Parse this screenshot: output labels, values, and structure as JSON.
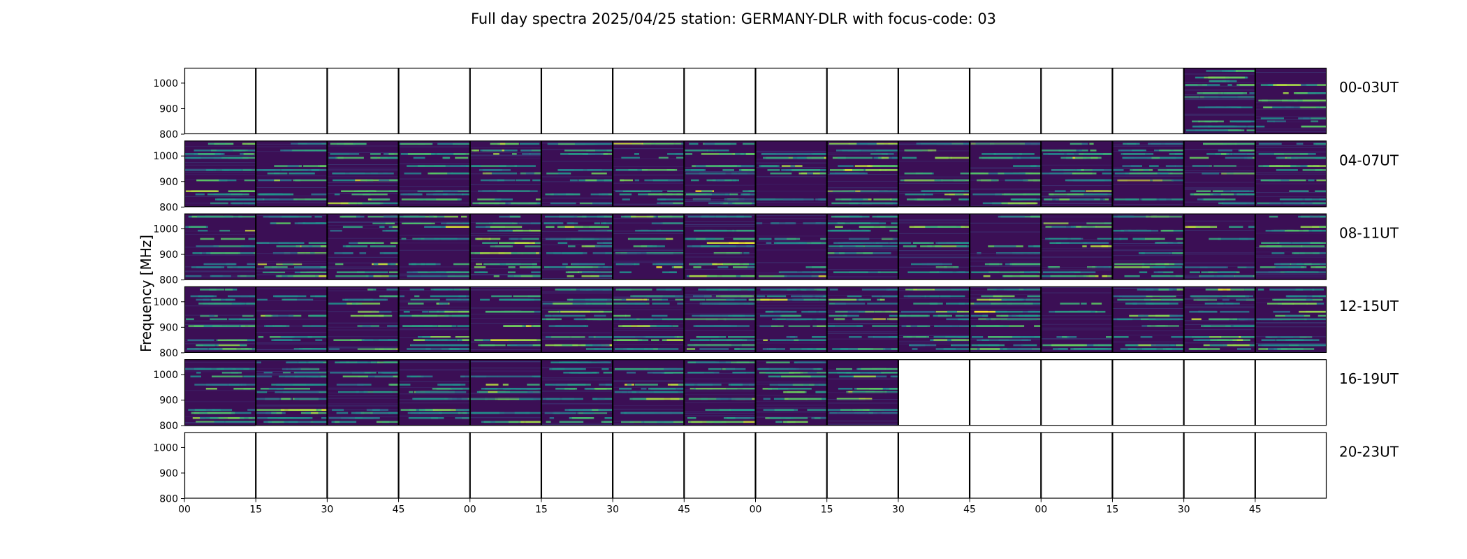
{
  "chart_data": {
    "type": "heatmap",
    "title": "Full day spectra 2025/04/25 station: GERMANY-DLR with focus-code: 03",
    "ylabel": "Frequency [MHz]",
    "xlabel": "",
    "ylim": [
      800,
      1060
    ],
    "yticks": [
      800,
      900,
      1000
    ],
    "xtick_labels": [
      "00",
      "15",
      "30",
      "45",
      "00",
      "15",
      "30",
      "45",
      "00",
      "15",
      "30",
      "45",
      "00",
      "15",
      "30",
      "45"
    ],
    "grid": false,
    "colormap": "viridis",
    "colors": {
      "background_low": "#3b0f55",
      "mid": "#21918c",
      "high": "#fde725",
      "empty": "#ffffff",
      "frame": "#000000"
    },
    "rows": [
      {
        "label": "00-03UT",
        "segments_with_data": [
          false,
          false,
          false,
          false,
          false,
          false,
          false,
          false,
          false,
          false,
          false,
          false,
          false,
          false,
          true,
          true
        ]
      },
      {
        "label": "04-07UT",
        "segments_with_data": [
          true,
          true,
          true,
          true,
          true,
          true,
          true,
          true,
          true,
          true,
          true,
          true,
          true,
          true,
          true,
          true
        ]
      },
      {
        "label": "08-11UT",
        "segments_with_data": [
          true,
          true,
          true,
          true,
          true,
          true,
          true,
          true,
          true,
          true,
          true,
          true,
          true,
          true,
          true,
          true
        ]
      },
      {
        "label": "12-15UT",
        "segments_with_data": [
          true,
          true,
          true,
          true,
          true,
          true,
          true,
          true,
          true,
          true,
          true,
          true,
          true,
          true,
          true,
          true
        ]
      },
      {
        "label": "16-19UT",
        "segments_with_data": [
          true,
          true,
          true,
          true,
          true,
          true,
          true,
          true,
          true,
          true,
          false,
          false,
          false,
          false,
          false,
          false
        ]
      },
      {
        "label": "20-23UT",
        "segments_with_data": [
          false,
          false,
          false,
          false,
          false,
          false,
          false,
          false,
          false,
          false,
          false,
          false,
          false,
          false,
          false,
          false
        ]
      }
    ],
    "bright_bands_mhz": [
      1048,
      1022,
      1008,
      993,
      961,
      945,
      932,
      905,
      862,
      850,
      830,
      815
    ]
  }
}
